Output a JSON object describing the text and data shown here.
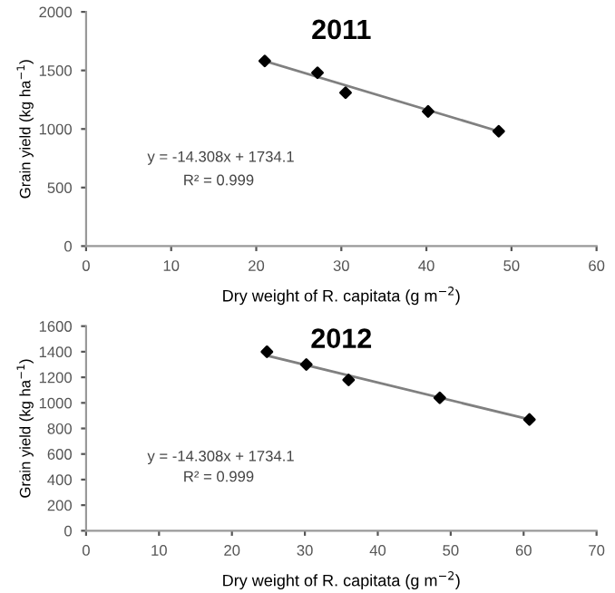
{
  "chart_data": [
    {
      "type": "scatter",
      "title": "2011",
      "xlabel": "Dry weight of R. capitata (g m$^{−2}$)",
      "ylabel": "Grain yield (kg ha$^{−1}$)",
      "xlim": [
        0,
        60
      ],
      "xticks": [
        0,
        10,
        20,
        30,
        40,
        50,
        60
      ],
      "ylim": [
        0,
        2000
      ],
      "yticks": [
        0,
        500,
        1000,
        1500,
        2000
      ],
      "grid": false,
      "marker": "diamond",
      "annotations": [
        {
          "text": "y = -14.308x + 1734.1"
        },
        {
          "text": "R² = 0.999"
        }
      ],
      "series": [
        {
          "color": "#000000",
          "x": [
            21,
            27.2,
            30.5,
            40.2,
            48.5
          ],
          "values": [
            1580,
            1480,
            1310,
            1150,
            980
          ]
        },
        {
          "type": "line",
          "color": "#808080",
          "marker": "none",
          "x": [
            21,
            48.5
          ],
          "values": [
            1580,
            980
          ]
        }
      ]
    },
    {
      "type": "scatter",
      "title": "2012",
      "xlabel": "Dry weight of R. capitata (g m$^{−2}$)",
      "ylabel": "Grain yield (kg ha$^{−1}$)",
      "xlim": [
        0,
        70
      ],
      "xticks": [
        0,
        10,
        20,
        30,
        40,
        50,
        60,
        70
      ],
      "ylim": [
        0,
        1600
      ],
      "yticks": [
        0,
        200,
        400,
        600,
        800,
        1000,
        1200,
        1400,
        1600
      ],
      "grid": false,
      "marker": "diamond",
      "annotations": [
        {
          "text": "y = -14.308x + 1734.1"
        },
        {
          "text": "R² = 0.999"
        }
      ],
      "series": [
        {
          "color": "#000000",
          "x": [
            24.8,
            30.2,
            36,
            48.5,
            60.8
          ],
          "values": [
            1400,
            1300,
            1180,
            1040,
            870
          ]
        },
        {
          "type": "line",
          "color": "#808080",
          "marker": "none",
          "x": [
            24.8,
            60.8
          ],
          "values": [
            1370,
            870
          ]
        }
      ]
    }
  ]
}
